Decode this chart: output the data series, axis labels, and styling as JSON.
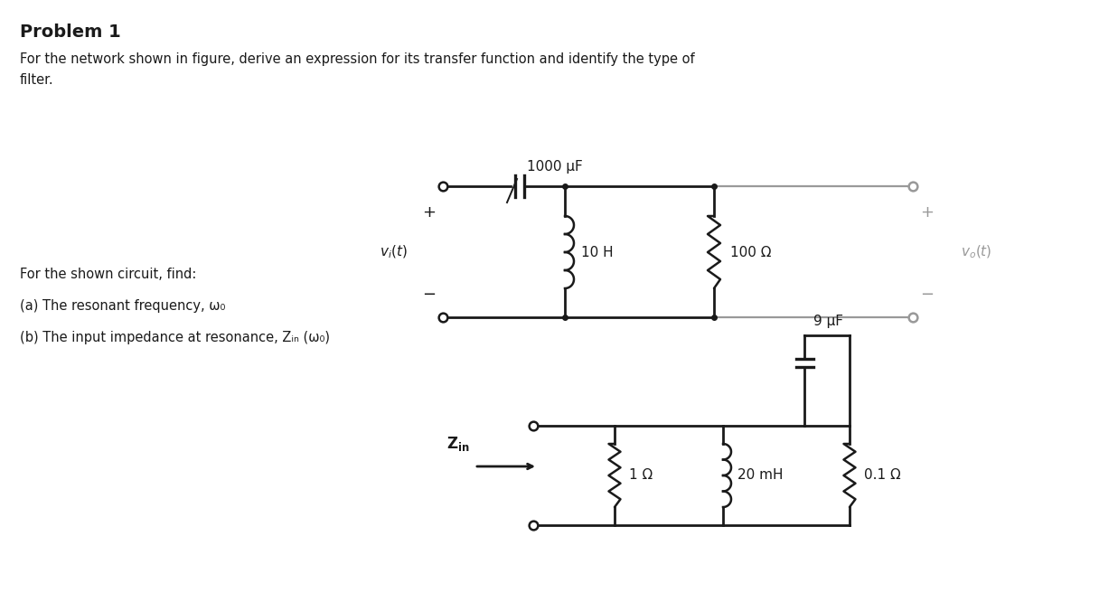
{
  "title": "Problem 1",
  "problem1_line1": "For the network shown in figure, derive an expression for its transfer function and identify the type of",
  "problem1_line2": "filter.",
  "problem2_text": "For the shown circuit, find:",
  "problem2a": "(a) The resonant frequency, ω₀",
  "problem2b": "(b) The input impedance at resonance, Zᵢₙ (ω₀)",
  "bg_color": "#ffffff",
  "circuit1": {
    "cap_label": "1000 μF",
    "ind_label": "10 H",
    "res_label": "100 Ω"
  },
  "circuit2": {
    "cap_label": "9 μF",
    "res1_label": "1 Ω",
    "ind_label": "20 mH",
    "res2_label": "0.1 Ω"
  }
}
